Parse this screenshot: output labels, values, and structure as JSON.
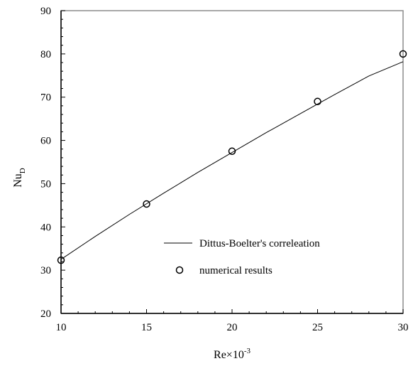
{
  "chart_data": {
    "type": "scatter",
    "xlabel": {
      "base": "Re×10",
      "sup": "-3"
    },
    "ylabel": {
      "base": "Nu",
      "sub": "D"
    },
    "xlim": [
      10,
      30
    ],
    "ylim": [
      20,
      90
    ],
    "x_ticks": [
      10,
      15,
      20,
      25,
      30
    ],
    "y_ticks": [
      20,
      30,
      40,
      50,
      60,
      70,
      80,
      90
    ],
    "grid": false,
    "legend_position": "bottom-right",
    "series": [
      {
        "name": "Dittus-Boelter's correleation",
        "kind": "line",
        "color": "#000000",
        "x": [
          10,
          12,
          14,
          16,
          18,
          20,
          22,
          24,
          26,
          28,
          30
        ],
        "y": [
          32.5,
          37.8,
          42.9,
          47.8,
          52.6,
          57.2,
          61.8,
          66.2,
          70.6,
          74.9,
          78.2
        ]
      },
      {
        "name": "numerical results",
        "kind": "marker",
        "marker": "open-circle",
        "color": "#000000",
        "x": [
          10,
          15,
          20,
          25,
          30
        ],
        "y": [
          32.3,
          45.3,
          57.5,
          69.0,
          80.0
        ]
      }
    ]
  }
}
